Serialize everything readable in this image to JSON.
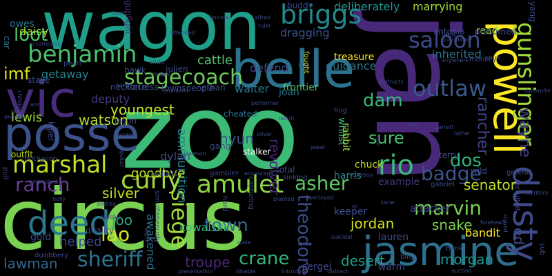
{
  "words": [
    {
      "text": "circus",
      "color": "#7ad151",
      "vertical": false
    },
    {
      "text": "zoo",
      "color": "#3bbb75",
      "vertical": false
    },
    {
      "text": "jan",
      "color": "#482878",
      "vertical": true
    },
    {
      "text": "wagon",
      "color": "#1f9e89",
      "vertical": false
    },
    {
      "text": "belle",
      "color": "#2c728e",
      "vertical": false
    },
    {
      "text": "posse",
      "color": "#3b528b",
      "vertical": false
    },
    {
      "text": "vic",
      "color": "#472d7b",
      "vertical": false
    },
    {
      "text": "powell",
      "color": "#fde725",
      "vertical": true
    },
    {
      "text": "jasmine",
      "color": "#2d708e",
      "vertical": false
    },
    {
      "text": "dusty",
      "color": "#3e4a89",
      "vertical": true
    },
    {
      "text": "gunslinger",
      "color": "#a0da39",
      "vertical": true
    },
    {
      "text": "deed",
      "color": "#2a788e",
      "vertical": false
    },
    {
      "text": "amulet",
      "color": "#8fd744",
      "vertical": false
    },
    {
      "text": "briggs",
      "color": "#23888e",
      "vertical": false
    },
    {
      "text": "benjamin",
      "color": "#4ac16d",
      "vertical": false
    },
    {
      "text": "stagecoach",
      "color": "#6ccd5a",
      "vertical": false
    },
    {
      "text": "marshal",
      "color": "#c2df23",
      "vertical": false
    },
    {
      "text": "curly",
      "color": "#a0da39",
      "vertical": false
    },
    {
      "text": "rio",
      "color": "#3bbb75",
      "vertical": false
    },
    {
      "text": "saloon",
      "color": "#3e4a89",
      "vertical": false
    },
    {
      "text": "outlaw",
      "color": "#38588c",
      "vertical": false
    },
    {
      "text": "ranch",
      "color": "#6a3d9a",
      "vertical": false
    },
    {
      "text": "asher",
      "color": "#5ec962",
      "vertical": false
    },
    {
      "text": "badge",
      "color": "#3b528b",
      "vertical": false
    },
    {
      "text": "marvin",
      "color": "#7ad151",
      "vertical": false
    },
    {
      "text": "sheriff",
      "color": "#2c728e",
      "vertical": false
    },
    {
      "text": "siege",
      "color": "#a0da39",
      "vertical": true
    },
    {
      "text": "crane",
      "color": "#2fb47c",
      "vertical": false
    },
    {
      "text": "lao",
      "color": "#d8e219",
      "vertical": false
    },
    {
      "text": "theodore",
      "color": "#3e4a89",
      "vertical": true
    },
    {
      "text": "town",
      "color": "#31688e",
      "vertical": false
    },
    {
      "text": "dam",
      "color": "#35b779",
      "vertical": false
    },
    {
      "text": "dos",
      "color": "#2fb47c",
      "vertical": false
    },
    {
      "text": "sure",
      "color": "#4ac16d",
      "vertical": false
    },
    {
      "text": "loot",
      "color": "#52c569",
      "vertical": false
    },
    {
      "text": "imf",
      "color": "#d8e219",
      "vertical": false
    },
    {
      "text": "lawman",
      "color": "#32648e",
      "vertical": false
    },
    {
      "text": "troupe",
      "color": "#482878",
      "vertical": false
    },
    {
      "text": "desert",
      "color": "#1f9e89",
      "vertical": false
    },
    {
      "text": "morgan",
      "color": "#20928c",
      "vertical": false
    },
    {
      "text": "senator",
      "color": "#c2df23",
      "vertical": false
    },
    {
      "text": "rancher",
      "color": "#414487",
      "vertical": true
    },
    {
      "text": "wayne",
      "color": "#414487",
      "vertical": true
    },
    {
      "text": "ed",
      "color": "#3e4a89",
      "vertical": true
    },
    {
      "text": "jordan",
      "color": "#d2e21b",
      "vertical": false
    },
    {
      "text": "snake",
      "color": "#7ad151",
      "vertical": false
    },
    {
      "text": "joo",
      "color": "#22a884",
      "vertical": false
    },
    {
      "text": "silver",
      "color": "#c2df23",
      "vertical": false
    },
    {
      "text": "lewis",
      "color": "#a0da39",
      "vertical": false
    },
    {
      "text": "watson",
      "color": "#b5de2b",
      "vertical": false
    },
    {
      "text": "youngest",
      "color": "#c8e020",
      "vertical": false
    },
    {
      "text": "cattle",
      "color": "#52c569",
      "vertical": false
    },
    {
      "text": "hyun",
      "color": "#3a548c",
      "vertical": false
    },
    {
      "text": "revolver",
      "color": "#482475",
      "vertical": true
    },
    {
      "text": "ammunition",
      "color": "#26828e",
      "vertical": true
    },
    {
      "text": "goodbye",
      "color": "#c2df23",
      "vertical": false
    },
    {
      "text": "daisy",
      "color": "#a0da39",
      "vertical": false
    },
    {
      "text": "getaway",
      "color": "#25858e",
      "vertical": false
    },
    {
      "text": "deputy",
      "color": "#443983",
      "vertical": false
    },
    {
      "text": "dylan",
      "color": "#3e4a89",
      "vertical": false
    },
    {
      "text": "helped",
      "color": "#3e4a89",
      "vertical": false
    },
    {
      "text": "gold",
      "color": "#3e4a89",
      "vertical": false
    },
    {
      "text": "kowalski",
      "color": "#35b779",
      "vertical": false
    },
    {
      "text": "awakened",
      "color": "#2c728e",
      "vertical": true
    },
    {
      "text": "harris",
      "color": "#26828e",
      "vertical": false
    },
    {
      "text": "lauren",
      "color": "#3e4a89",
      "vertical": false
    },
    {
      "text": "attacker",
      "color": "#3e4a89",
      "vertical": false
    },
    {
      "text": "example",
      "color": "#443983",
      "vertical": false
    },
    {
      "text": "bandit",
      "color": "#fde725",
      "vertical": false
    },
    {
      "text": "frontier",
      "color": "#52c569",
      "vertical": false
    },
    {
      "text": "joan",
      "color": "#2a788e",
      "vertical": false
    },
    {
      "text": "walter",
      "color": "#2a788e",
      "vertical": false
    },
    {
      "text": "whilst",
      "color": "#35b779",
      "vertical": true
    },
    {
      "text": "rabbit",
      "color": "#a0da39",
      "vertical": true
    },
    {
      "text": "chuck",
      "color": "#c2df23",
      "vertical": false
    },
    {
      "text": "read",
      "color": "#a0da39",
      "vertical": false
    },
    {
      "text": "inherited",
      "color": "#2c728e",
      "vertical": false
    },
    {
      "text": "guidance",
      "color": "#2c728e",
      "vertical": false
    },
    {
      "text": "treasure",
      "color": "#fde725",
      "vertical": false
    },
    {
      "text": "marrying",
      "color": "#a0da39",
      "vertical": false
    },
    {
      "text": "deliberately",
      "color": "#20928c",
      "vertical": false
    },
    {
      "text": "dragging",
      "color": "#3b528b",
      "vertical": false
    },
    {
      "text": "defend",
      "color": "#3e4a89",
      "vertical": false
    },
    {
      "text": "owes",
      "color": "#2c728e",
      "vertical": false
    },
    {
      "text": "car",
      "color": "#2c728e",
      "vertical": true
    },
    {
      "text": "keeper",
      "color": "#3e4a89",
      "vertical": false
    },
    {
      "text": "total",
      "color": "#3e4a89",
      "vertical": false
    },
    {
      "text": "gang",
      "color": "#3e4a89",
      "vertical": false
    },
    {
      "text": "cheated",
      "color": "#2c728e",
      "vertical": false
    },
    {
      "text": "stalker",
      "color": "#ffffff",
      "vertical": false
    },
    {
      "text": "sergei",
      "color": "#3e4a89",
      "vertical": false
    },
    {
      "text": "warm",
      "color": "#3e4a89",
      "vertical": false
    },
    {
      "text": "outfit",
      "color": "#c2df23",
      "vertical": false
    },
    {
      "text": "robbery",
      "color": "#3e4a89",
      "vertical": false
    },
    {
      "text": "quality",
      "color": "#3e4a89",
      "vertical": false
    },
    {
      "text": "pull",
      "color": "#3e4a89",
      "vertical": true
    },
    {
      "text": "killer",
      "color": "#3e4a89",
      "vertical": true
    },
    {
      "text": "wild",
      "color": "#3e4a89",
      "vertical": false
    },
    {
      "text": "terry",
      "color": "#3e4a89",
      "vertical": false
    },
    {
      "text": "buddy",
      "color": "#3e4a89",
      "vertical": false
    },
    {
      "text": "jason",
      "color": "#3e4a89",
      "vertical": false
    },
    {
      "text": "ethan",
      "color": "#3e4a89",
      "vertical": false
    },
    {
      "text": "fought",
      "color": "#d8e219",
      "vertical": true
    },
    {
      "text": "antonio",
      "color": "#3e4a89",
      "vertical": false
    },
    {
      "text": "presumed",
      "color": "#3e4a89",
      "vertical": false
    },
    {
      "text": "yang",
      "color": "#3e4a89",
      "vertical": true
    },
    {
      "text": "stake",
      "color": "#3e4a89",
      "vertical": false
    },
    {
      "text": "necklace",
      "color": "#3e4a89",
      "vertical": false
    },
    {
      "text": "townspeople",
      "color": "#3e4a89",
      "vertical": false
    },
    {
      "text": "fortress",
      "color": "#3e4a89",
      "vertical": false
    },
    {
      "text": "hawk",
      "color": "#3e4a89",
      "vertical": false
    },
    {
      "text": "julien",
      "color": "#3e4a89",
      "vertical": false
    },
    {
      "text": "gunfight",
      "color": "#482878",
      "vertical": true
    },
    {
      "text": "conclusion",
      "color": "#3e4a89",
      "vertical": false
    },
    {
      "text": "abducts",
      "color": "#3e4a89",
      "vertical": false
    },
    {
      "text": "capturing",
      "color": "#3e4a89",
      "vertical": true
    },
    {
      "text": "simultaneously",
      "color": "#3e4a89",
      "vertical": true
    },
    {
      "text": "hard",
      "color": "#3e4a89",
      "vertical": true
    },
    {
      "text": "gambler",
      "color": "#3e4a89",
      "vertical": false
    },
    {
      "text": "sinking",
      "color": "#3e4a89",
      "vertical": false
    },
    {
      "text": "bank",
      "color": "#3e4a89",
      "vertical": false
    },
    {
      "text": "billy",
      "color": "#3e4a89",
      "vertical": false
    },
    {
      "text": "gabriel",
      "color": "#3e4a89",
      "vertical": false
    },
    {
      "text": "du",
      "color": "#3e4a89",
      "vertical": false
    },
    {
      "text": "sub",
      "color": "#3e4a89",
      "vertical": true
    },
    {
      "text": "rob",
      "color": "#3e4a89",
      "vertical": false
    },
    {
      "text": "hug",
      "color": "#3e4a89",
      "vertical": false
    },
    {
      "text": "vast",
      "color": "#3e4a89",
      "vertical": false
    },
    {
      "text": "monkey",
      "color": "#3e4a89",
      "vertical": false
    },
    {
      "text": "pearl",
      "color": "#3e4a89",
      "vertical": false
    },
    {
      "text": "slide",
      "color": "#3e4a89",
      "vertical": false
    },
    {
      "text": "brett",
      "color": "#3e4a89",
      "vertical": false
    },
    {
      "text": "jerome",
      "color": "#3e4a89",
      "vertical": false
    },
    {
      "text": "alfred",
      "color": "#3e4a89",
      "vertical": false
    },
    {
      "text": "ruler",
      "color": "#3e4a89",
      "vertical": false
    },
    {
      "text": "trooper",
      "color": "#3e4a89",
      "vertical": false
    },
    {
      "text": "drunken",
      "color": "#3e4a89",
      "vertical": false
    },
    {
      "text": "greene",
      "color": "#3e4a89",
      "vertical": false
    },
    {
      "text": "recruited",
      "color": "#3e4a89",
      "vertical": true
    },
    {
      "text": "territory",
      "color": "#3e4a89",
      "vertical": false
    },
    {
      "text": "presentation",
      "color": "#3e4a89",
      "vertical": false
    },
    {
      "text": "disable",
      "color": "#3e4a89",
      "vertical": false
    },
    {
      "text": "introduce",
      "color": "#3e4a89",
      "vertical": false
    },
    {
      "text": "distract",
      "color": "#3e4a89",
      "vertical": false
    },
    {
      "text": "auction",
      "color": "#3e4a89",
      "vertical": false
    },
    {
      "text": "dynamite",
      "color": "#3e4a89",
      "vertical": false
    },
    {
      "text": "forehead",
      "color": "#3e4a89",
      "vertical": false
    },
    {
      "text": "signed",
      "color": "#3e4a89",
      "vertical": true
    },
    {
      "text": "garrett",
      "color": "#3e4a89",
      "vertical": false
    },
    {
      "text": "luther",
      "color": "#3e4a89",
      "vertical": false
    },
    {
      "text": "yes",
      "color": "#3e4a89",
      "vertical": false
    },
    {
      "text": "prey",
      "color": "#3e4a89",
      "vertical": false
    },
    {
      "text": "impaled",
      "color": "#3e4a89",
      "vertical": false
    },
    {
      "text": "christopher",
      "color": "#3e4a89",
      "vertical": true
    },
    {
      "text": "aim",
      "color": "#3e4a89",
      "vertical": false
    },
    {
      "text": "barker",
      "color": "#3e4a89",
      "vertical": false
    },
    {
      "text": "broke",
      "color": "#3e4a89",
      "vertical": false
    },
    {
      "text": "guitar",
      "color": "#3e4a89",
      "vertical": true
    },
    {
      "text": "ambushed",
      "color": "#3e4a89",
      "vertical": false
    },
    {
      "text": "holly",
      "color": "#3e4a89",
      "vertical": false
    },
    {
      "text": "andrea",
      "color": "#3e4a89",
      "vertical": false
    },
    {
      "text": "embark",
      "color": "#3e4a89",
      "vertical": false
    },
    {
      "text": "encourage",
      "color": "#3e4a89",
      "vertical": false
    },
    {
      "text": "planted",
      "color": "#3e4a89",
      "vertical": false
    },
    {
      "text": "overjoyed",
      "color": "#3e4a89",
      "vertical": false
    },
    {
      "text": "cowboy",
      "color": "#3e4a89",
      "vertical": false
    },
    {
      "text": "jewel",
      "color": "#3e4a89",
      "vertical": false
    },
    {
      "text": "oliver",
      "color": "#3e4a89",
      "vertical": false
    },
    {
      "text": "dawson",
      "color": "#3e4a89",
      "vertical": false
    },
    {
      "text": "attended",
      "color": "#3e4a89",
      "vertical": false
    },
    {
      "text": "accompany",
      "color": "#3e4a89",
      "vertical": false
    },
    {
      "text": "quarantine",
      "color": "#3e4a89",
      "vertical": false
    },
    {
      "text": "instructs",
      "color": "#3e4a89",
      "vertical": false
    },
    {
      "text": "performer",
      "color": "#3e4a89",
      "vertical": false
    },
    {
      "text": "larkin",
      "color": "#3e4a89",
      "vertical": false
    },
    {
      "text": "kane",
      "color": "#3e4a89",
      "vertical": false
    },
    {
      "text": "suicidal",
      "color": "#3e4a89",
      "vertical": false
    },
    {
      "text": "plea",
      "color": "#3e4a89",
      "vertical": false
    },
    {
      "text": "rosie",
      "color": "#3e4a89",
      "vertical": false
    },
    {
      "text": "eight",
      "color": "#3e4a89",
      "vertical": true
    },
    {
      "text": "el",
      "color": "#3e4a89",
      "vertical": false
    },
    {
      "text": "app",
      "color": "#3e4a89",
      "vertical": true
    },
    {
      "text": "kang",
      "color": "#3e4a89",
      "vertical": false
    },
    {
      "text": "stuck",
      "color": "#3e4a89",
      "vertical": false
    },
    {
      "text": "anywhere",
      "color": "#3e4a89",
      "vertical": false
    }
  ]
}
